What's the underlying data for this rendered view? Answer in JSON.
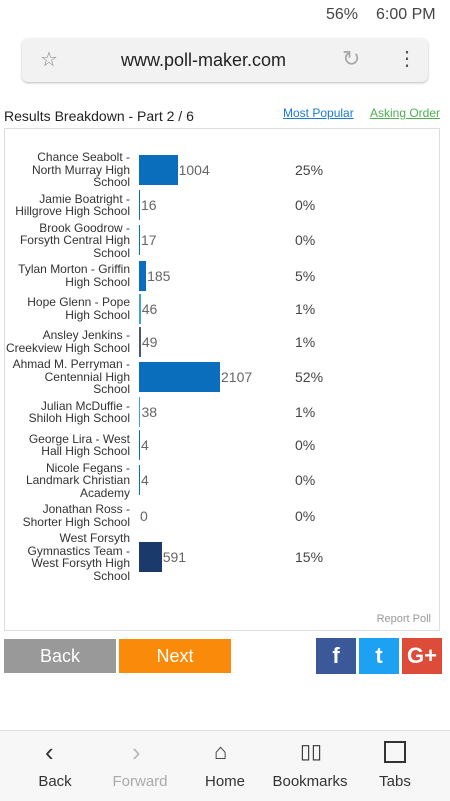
{
  "status_bar": {
    "battery": "56%",
    "time": "6:00 PM"
  },
  "browser": {
    "url": "www.poll-maker.com"
  },
  "header": {
    "title": "Results Breakdown - Part 2 / 6",
    "links": [
      "Most Popular",
      "Asking Order"
    ]
  },
  "results": {
    "rows": [
      {
        "label": "Chance Seabolt - North Murray High School",
        "votes": 1004,
        "percent": "25%",
        "color": "#0a6ebd"
      },
      {
        "label": "Jamie Boatright - Hillgrove High School",
        "votes": 16,
        "percent": "0%",
        "color": "#0a6ebd"
      },
      {
        "label": "Brook Goodrow - Forsyth Central High School",
        "votes": 17,
        "percent": "0%",
        "color": "#0a6ebd"
      },
      {
        "label": "Tylan Morton - Griffin High School",
        "votes": 185,
        "percent": "5%",
        "color": "#0a6ebd"
      },
      {
        "label": "Hope Glenn - Pope High School",
        "votes": 46,
        "percent": "1%",
        "color": "#3fa0d8"
      },
      {
        "label": "Ansley Jenkins - Creekview High School",
        "votes": 49,
        "percent": "1%",
        "color": "#4a5a6a"
      },
      {
        "label": "Ahmad M. Perryman - Centennial High School",
        "votes": 2107,
        "percent": "52%",
        "color": "#0a6ebd"
      },
      {
        "label": "Julian McDuffie - Shiloh High School",
        "votes": 38,
        "percent": "1%",
        "color": "#3fa0d8"
      },
      {
        "label": "George Lira - West Hall High School",
        "votes": 4,
        "percent": "0%",
        "color": "#0a6ebd"
      },
      {
        "label": "Nicole Fegans - Landmark Christian Academy",
        "votes": 4,
        "percent": "0%",
        "color": "#0a6ebd"
      },
      {
        "label": "Jonathan Ross - Shorter High School",
        "votes": 0,
        "percent": "0%",
        "color": "#0a6ebd"
      },
      {
        "label": "West Forsyth Gymnastics Team - West Forsyth High School",
        "votes": 591,
        "percent": "15%",
        "color": "#1a3a6b"
      }
    ],
    "report": "Report Poll"
  },
  "buttons": {
    "back": "Back",
    "next": "Next"
  },
  "nav": [
    "Back",
    "Forward",
    "Home",
    "Bookmarks",
    "Tabs"
  ]
}
